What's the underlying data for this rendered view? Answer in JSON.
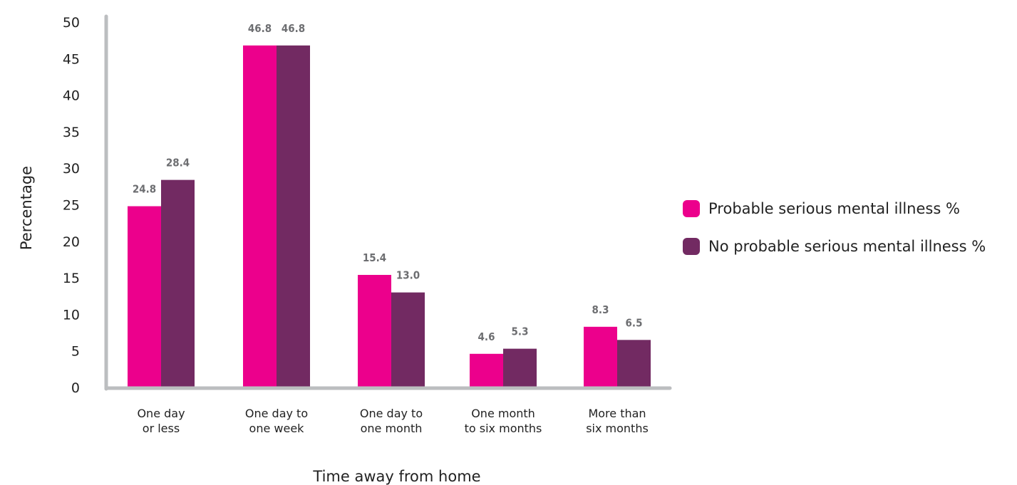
{
  "chart_data": {
    "type": "bar",
    "categories": [
      [
        "One day",
        "or less"
      ],
      [
        "One day to",
        "one week"
      ],
      [
        "One day to",
        "one month"
      ],
      [
        "One month",
        "to six months"
      ],
      [
        "More than",
        "six months"
      ]
    ],
    "series": [
      {
        "name": "Probable serious mental illness %",
        "color": "#ec008c",
        "values": [
          24.8,
          46.8,
          15.4,
          4.6,
          8.3
        ],
        "labels": [
          "24.8",
          "46.8",
          "15.4",
          "4.6",
          "8.3"
        ]
      },
      {
        "name": "No probable serious mental illness %",
        "color": "#722a62",
        "values": [
          28.4,
          46.8,
          13.0,
          5.3,
          6.5
        ],
        "labels": [
          "28.4",
          "46.8",
          "13.0",
          "5.3",
          "6.5"
        ]
      }
    ],
    "xlabel": "Time away from home",
    "ylabel": "Percentage",
    "ylim": [
      0,
      50
    ],
    "yticks": [
      "0",
      "5",
      "10",
      "15",
      "20",
      "25",
      "30",
      "35",
      "40",
      "45",
      "50"
    ],
    "grid": false,
    "legend_position": "right",
    "axis_color": "#bcbec0"
  }
}
